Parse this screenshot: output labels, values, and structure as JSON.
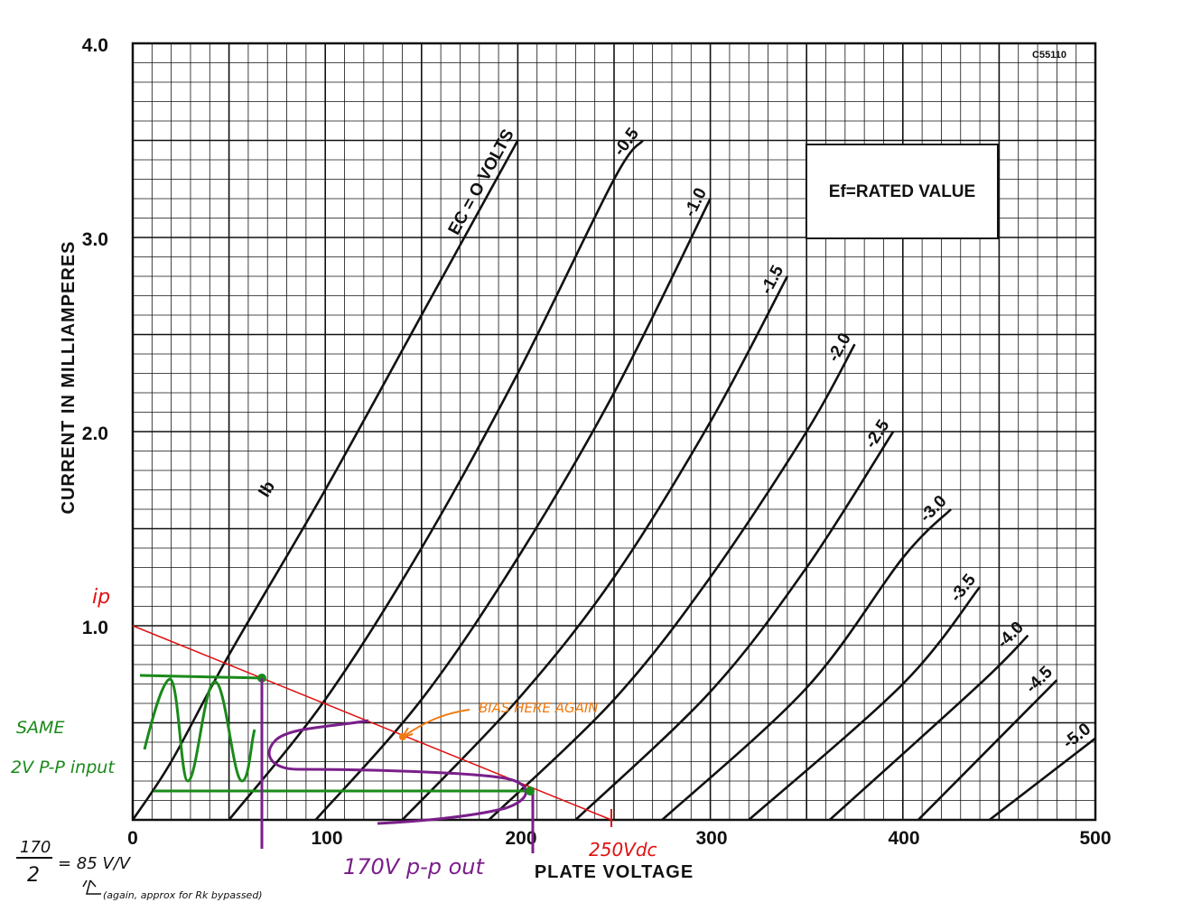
{
  "chart_data": {
    "type": "line",
    "xlabel": "PLATE VOLTAGE",
    "ylabel": "CURRENT IN MILLIAMPERES",
    "xlim": [
      0,
      500
    ],
    "ylim": [
      0,
      4.0
    ],
    "x_ticks": [
      "0",
      "100",
      "200",
      "300",
      "400",
      "500"
    ],
    "y_ticks": [
      "1.0",
      "2.0",
      "3.0",
      "4.0"
    ],
    "grid": true,
    "code_label": "C55110",
    "box_label": "Ef=RATED VALUE",
    "ib_label": "Ib",
    "series": [
      {
        "name": "EC = O VOLTS",
        "points": [
          [
            0,
            0
          ],
          [
            20,
            0.3
          ],
          [
            50,
            0.85
          ],
          [
            100,
            1.7
          ],
          [
            150,
            2.6
          ],
          [
            200,
            3.5
          ]
        ]
      },
      {
        "name": "-0.5",
        "points": [
          [
            50,
            0
          ],
          [
            100,
            0.62
          ],
          [
            150,
            1.4
          ],
          [
            200,
            2.3
          ],
          [
            250,
            3.3
          ],
          [
            265,
            3.5
          ]
        ]
      },
      {
        "name": "-1.0",
        "points": [
          [
            95,
            0
          ],
          [
            150,
            0.62
          ],
          [
            200,
            1.35
          ],
          [
            250,
            2.2
          ],
          [
            300,
            3.2
          ]
        ]
      },
      {
        "name": "-1.5",
        "points": [
          [
            140,
            0
          ],
          [
            200,
            0.62
          ],
          [
            250,
            1.25
          ],
          [
            300,
            2.05
          ],
          [
            340,
            2.8
          ]
        ]
      },
      {
        "name": "-2.0",
        "points": [
          [
            185,
            0
          ],
          [
            250,
            0.62
          ],
          [
            300,
            1.25
          ],
          [
            350,
            2.0
          ],
          [
            375,
            2.45
          ]
        ]
      },
      {
        "name": "-2.5",
        "points": [
          [
            230,
            0
          ],
          [
            300,
            0.66
          ],
          [
            350,
            1.3
          ],
          [
            395,
            2.0
          ]
        ]
      },
      {
        "name": "-3.0",
        "points": [
          [
            275,
            0
          ],
          [
            350,
            0.68
          ],
          [
            400,
            1.35
          ],
          [
            425,
            1.6
          ]
        ]
      },
      {
        "name": "-3.5",
        "points": [
          [
            320,
            0
          ],
          [
            400,
            0.7
          ],
          [
            440,
            1.2
          ]
        ]
      },
      {
        "name": "-4.0",
        "points": [
          [
            362,
            0
          ],
          [
            440,
            0.7
          ],
          [
            465,
            0.95
          ]
        ]
      },
      {
        "name": "-4.5",
        "points": [
          [
            408,
            0
          ],
          [
            460,
            0.52
          ],
          [
            480,
            0.72
          ]
        ]
      },
      {
        "name": "-5.0",
        "points": [
          [
            445,
            0
          ],
          [
            500,
            0.42
          ]
        ]
      }
    ]
  },
  "annotations": {
    "ip": "ip",
    "bias": "BIAS HERE AGAIN",
    "same": "SAME",
    "input": "2V P-P input",
    "out": "170V p-p out",
    "vdc": "250Vdc",
    "frac_num": "170",
    "frac_den": "2",
    "gain": "= 85 V/V",
    "note": "(again, approx for Rk bypassed)"
  },
  "colors": {
    "load_line": "#e01010",
    "input_wave": "#1a8a1a",
    "output_wave": "#7a1f8a",
    "bias_note": "#f07a10",
    "grid": "#111111"
  }
}
